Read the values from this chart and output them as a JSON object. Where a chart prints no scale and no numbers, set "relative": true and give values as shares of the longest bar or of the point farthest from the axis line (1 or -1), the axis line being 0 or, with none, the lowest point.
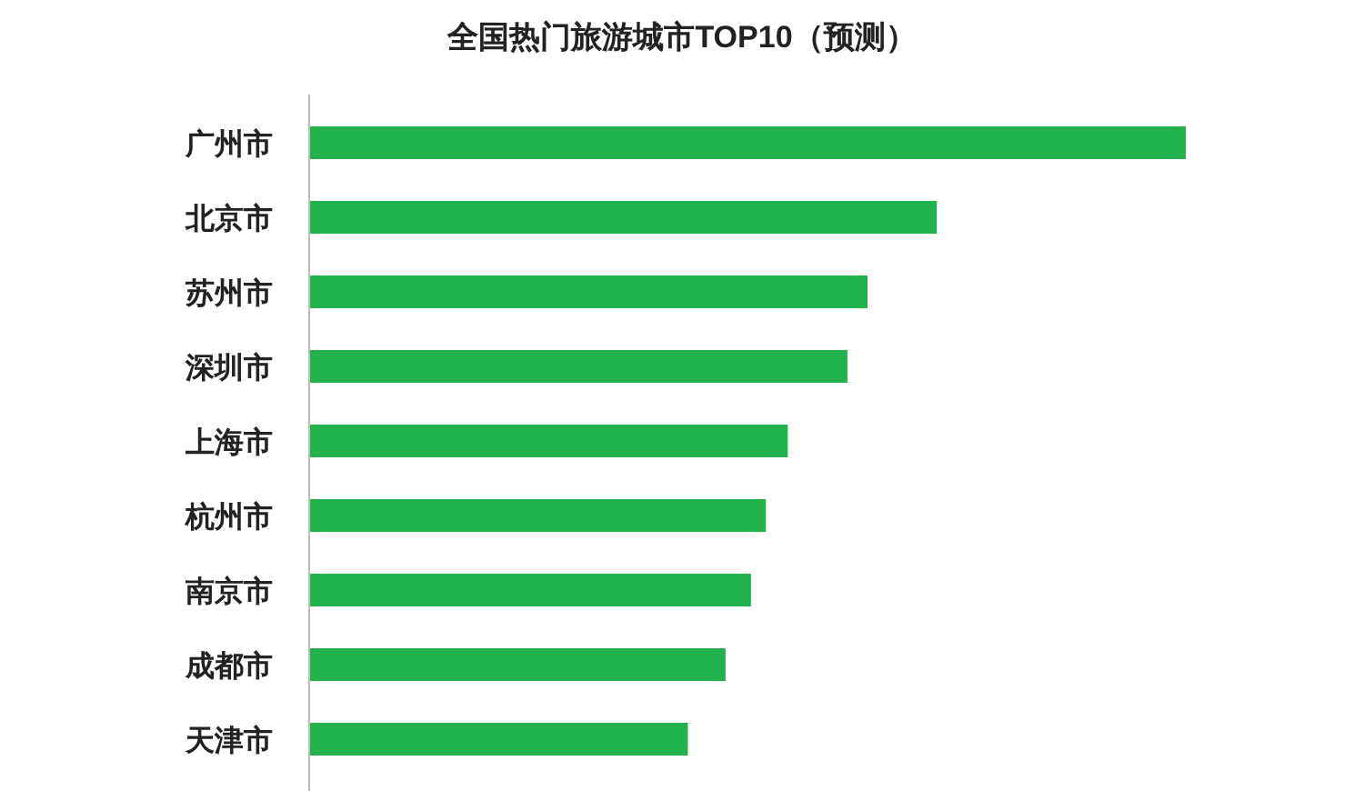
{
  "chart_data": {
    "type": "bar",
    "orientation": "horizontal",
    "relative": true,
    "title": "全国热门旅游城市TOP10（预测）",
    "categories": [
      "广州市",
      "北京市",
      "苏州市",
      "深圳市",
      "上海市",
      "杭州市",
      "南京市",
      "成都市",
      "天津市"
    ],
    "values": [
      1,
      0.716,
      0.637,
      0.614,
      0.546,
      0.521,
      0.504,
      0.475,
      0.432
    ],
    "color": "#22b24c"
  }
}
